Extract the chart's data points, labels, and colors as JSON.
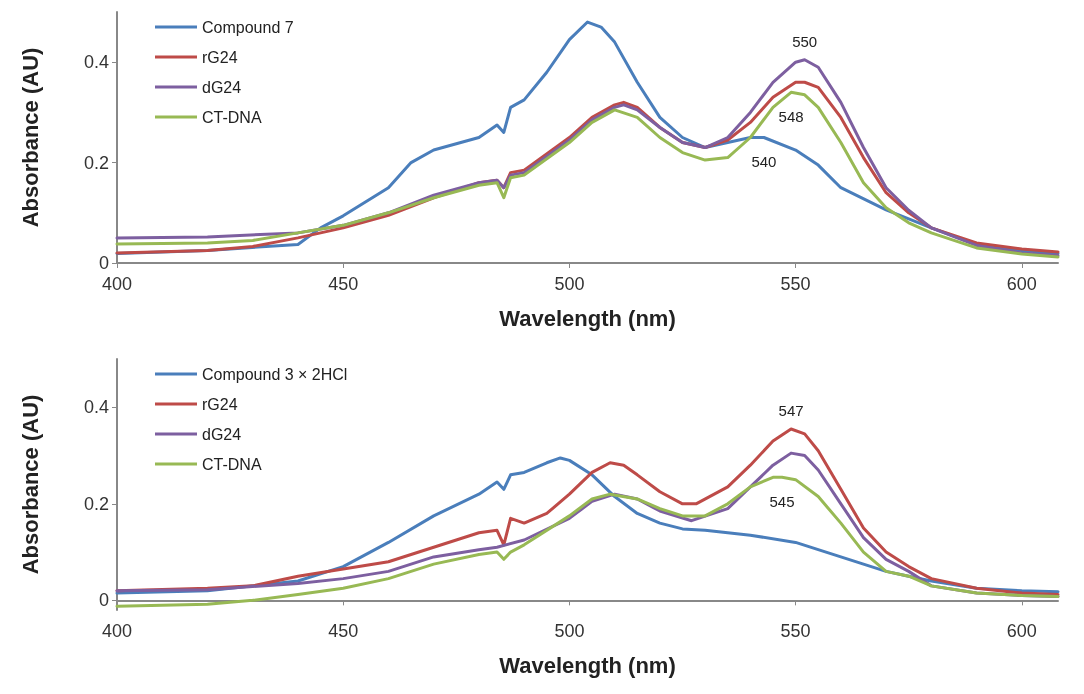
{
  "chart_data": [
    {
      "type": "line",
      "xlabel": "Wavelength (nm)",
      "ylabel": "Absorbance (AU)",
      "xlim": [
        400,
        608
      ],
      "xticks": [
        400,
        450,
        500,
        550,
        600
      ],
      "ylim": [
        0,
        0.5
      ],
      "yticks": [
        0,
        0.2,
        0.4
      ],
      "grid": false,
      "legend": "top left",
      "marker": "none",
      "line_style": "solid",
      "annotations": [
        {
          "text": "550",
          "x": 552,
          "y": 0.405
        },
        {
          "text": "548",
          "x": 549,
          "y": 0.34
        },
        {
          "text": "540",
          "x": 543,
          "y": 0.25
        }
      ],
      "series": [
        {
          "name": "Compound 7",
          "color": "#4a7ebb",
          "x": [
            400,
            420,
            440,
            445,
            450,
            460,
            465,
            470,
            480,
            484,
            485.5,
            487,
            490,
            495,
            500,
            504,
            507,
            510,
            515,
            520,
            525,
            530,
            535,
            540,
            543,
            550,
            555,
            560,
            570,
            580,
            590,
            600,
            608
          ],
          "values": [
            0.019,
            0.025,
            0.037,
            0.07,
            0.094,
            0.15,
            0.2,
            0.225,
            0.25,
            0.275,
            0.26,
            0.31,
            0.325,
            0.38,
            0.445,
            0.48,
            0.47,
            0.44,
            0.36,
            0.29,
            0.25,
            0.23,
            0.24,
            0.25,
            0.25,
            0.225,
            0.195,
            0.15,
            0.106,
            0.07,
            0.037,
            0.025,
            0.019
          ]
        },
        {
          "name": "rG24",
          "color": "#be4b48",
          "x": [
            400,
            420,
            430,
            440,
            450,
            460,
            470,
            480,
            484,
            485.5,
            487,
            490,
            500,
            505,
            510,
            512,
            515,
            520,
            525,
            530,
            535,
            540,
            545,
            550,
            552,
            555,
            560,
            565,
            570,
            575,
            580,
            590,
            600,
            608
          ],
          "values": [
            0.02,
            0.025,
            0.033,
            0.05,
            0.07,
            0.095,
            0.13,
            0.16,
            0.165,
            0.15,
            0.18,
            0.185,
            0.25,
            0.29,
            0.315,
            0.32,
            0.31,
            0.27,
            0.24,
            0.23,
            0.245,
            0.28,
            0.33,
            0.36,
            0.36,
            0.35,
            0.29,
            0.21,
            0.14,
            0.1,
            0.07,
            0.04,
            0.028,
            0.022
          ]
        },
        {
          "name": "dG24",
          "color": "#7d5fa0",
          "x": [
            400,
            420,
            440,
            450,
            460,
            470,
            480,
            484,
            485.5,
            487,
            490,
            500,
            505,
            510,
            512,
            515,
            520,
            525,
            530,
            535,
            540,
            545,
            550,
            552,
            555,
            560,
            565,
            570,
            575,
            580,
            590,
            600,
            608
          ],
          "values": [
            0.05,
            0.052,
            0.06,
            0.075,
            0.1,
            0.135,
            0.16,
            0.165,
            0.15,
            0.175,
            0.18,
            0.245,
            0.285,
            0.31,
            0.315,
            0.305,
            0.27,
            0.24,
            0.23,
            0.25,
            0.3,
            0.36,
            0.4,
            0.405,
            0.39,
            0.32,
            0.23,
            0.15,
            0.105,
            0.07,
            0.035,
            0.02,
            0.015
          ]
        },
        {
          "name": "CT-DNA",
          "color": "#98b954",
          "x": [
            400,
            420,
            430,
            440,
            450,
            460,
            470,
            480,
            484,
            485.5,
            487,
            490,
            500,
            505,
            510,
            515,
            520,
            525,
            530,
            535,
            540,
            545,
            549,
            552,
            555,
            560,
            565,
            570,
            575,
            580,
            590,
            600,
            608
          ],
          "values": [
            0.038,
            0.04,
            0.045,
            0.06,
            0.075,
            0.1,
            0.13,
            0.155,
            0.16,
            0.13,
            0.17,
            0.175,
            0.24,
            0.28,
            0.305,
            0.29,
            0.25,
            0.22,
            0.205,
            0.21,
            0.25,
            0.31,
            0.34,
            0.335,
            0.31,
            0.24,
            0.16,
            0.11,
            0.08,
            0.06,
            0.03,
            0.018,
            0.012
          ]
        }
      ]
    },
    {
      "type": "line",
      "xlabel": "Wavelength (nm)",
      "ylabel": "Absorbance (AU)",
      "xlim": [
        400,
        608
      ],
      "xticks": [
        400,
        450,
        500,
        550,
        600
      ],
      "ylim": [
        -0.02,
        0.5
      ],
      "yticks": [
        0,
        0.2,
        0.4
      ],
      "grid": false,
      "legend": "top left",
      "marker": "none",
      "line_style": "solid",
      "annotations": [
        {
          "text": "547",
          "x": 549,
          "y": 0.355
        },
        {
          "text": "545",
          "x": 547,
          "y": 0.255
        }
      ],
      "series": [
        {
          "name": "Compound 3 × 2HCl",
          "color": "#4a7ebb",
          "x": [
            400,
            420,
            440,
            450,
            460,
            470,
            480,
            484,
            485.5,
            487,
            490,
            495,
            498,
            500,
            505,
            510,
            515,
            520,
            525,
            530,
            540,
            550,
            560,
            570,
            575,
            580,
            590,
            600,
            608
          ],
          "values": [
            0.015,
            0.02,
            0.04,
            0.07,
            0.12,
            0.175,
            0.22,
            0.245,
            0.23,
            0.26,
            0.265,
            0.285,
            0.295,
            0.29,
            0.26,
            0.215,
            0.18,
            0.16,
            0.148,
            0.145,
            0.135,
            0.12,
            0.09,
            0.06,
            0.05,
            0.04,
            0.025,
            0.02,
            0.018
          ]
        },
        {
          "name": "rG24",
          "color": "#be4b48",
          "x": [
            400,
            420,
            430,
            440,
            450,
            460,
            470,
            480,
            484,
            485.5,
            487,
            490,
            495,
            500,
            505,
            509,
            512,
            515,
            520,
            525,
            528,
            535,
            540,
            545,
            549,
            552,
            555,
            560,
            565,
            570,
            575,
            580,
            590,
            600,
            608
          ],
          "values": [
            0.02,
            0.025,
            0.03,
            0.05,
            0.065,
            0.08,
            0.11,
            0.14,
            0.145,
            0.115,
            0.17,
            0.16,
            0.18,
            0.22,
            0.265,
            0.285,
            0.28,
            0.26,
            0.225,
            0.2,
            0.2,
            0.235,
            0.28,
            0.33,
            0.355,
            0.345,
            0.31,
            0.23,
            0.15,
            0.1,
            0.07,
            0.045,
            0.025,
            0.015,
            0.012
          ]
        },
        {
          "name": "dG24",
          "color": "#7d5fa0",
          "x": [
            400,
            420,
            440,
            450,
            460,
            470,
            480,
            484,
            490,
            500,
            505,
            510,
            515,
            520,
            527,
            535,
            540,
            545,
            549,
            552,
            555,
            560,
            565,
            570,
            575,
            580,
            590,
            600,
            608
          ],
          "values": [
            0.02,
            0.022,
            0.035,
            0.045,
            0.06,
            0.09,
            0.105,
            0.11,
            0.125,
            0.17,
            0.205,
            0.22,
            0.21,
            0.185,
            0.165,
            0.19,
            0.235,
            0.28,
            0.305,
            0.3,
            0.27,
            0.2,
            0.13,
            0.085,
            0.06,
            0.03,
            0.015,
            0.01,
            0.008
          ]
        },
        {
          "name": "CT-DNA",
          "color": "#98b954",
          "x": [
            400,
            420,
            430,
            440,
            450,
            460,
            470,
            480,
            484,
            485.5,
            487,
            490,
            500,
            505,
            509,
            515,
            520,
            525,
            530,
            535,
            540,
            545,
            547,
            550,
            555,
            560,
            565,
            570,
            575,
            580,
            590,
            600,
            608
          ],
          "values": [
            -0.012,
            -0.008,
            0.0,
            0.012,
            0.025,
            0.045,
            0.075,
            0.095,
            0.1,
            0.085,
            0.1,
            0.115,
            0.175,
            0.21,
            0.22,
            0.21,
            0.19,
            0.175,
            0.175,
            0.2,
            0.235,
            0.255,
            0.255,
            0.25,
            0.215,
            0.16,
            0.1,
            0.06,
            0.05,
            0.03,
            0.015,
            0.01,
            0.008
          ]
        }
      ]
    }
  ]
}
